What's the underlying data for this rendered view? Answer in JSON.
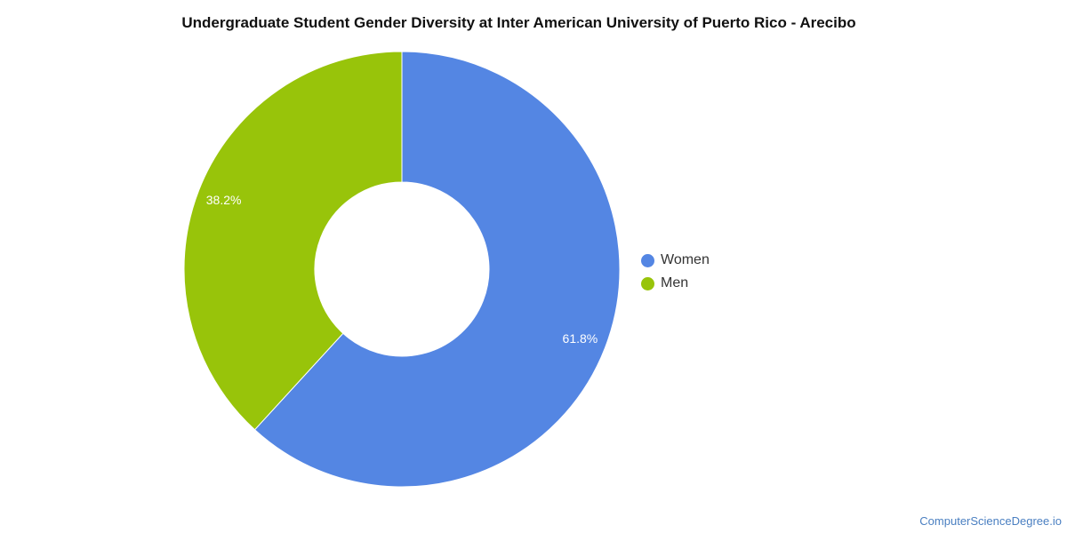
{
  "chart_data": {
    "type": "pie",
    "title": "Undergraduate Student Gender Diversity at Inter American University of Puerto Rico - Arecibo",
    "slices": [
      {
        "name": "Women",
        "value": 61.8,
        "label": "61.8%",
        "color": "#5486e3"
      },
      {
        "name": "Men",
        "value": 38.2,
        "label": "38.2%",
        "color": "#98c40a"
      }
    ],
    "donut": true,
    "legend_position": "right"
  },
  "watermark": "ComputerScienceDegree.io"
}
